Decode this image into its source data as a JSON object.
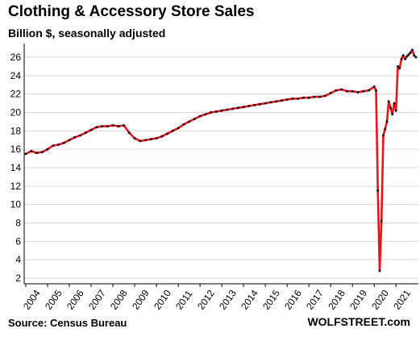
{
  "header": {
    "title": "Clothing & Accessory Store Sales",
    "subtitle": "Billion $, seasonally adjusted"
  },
  "footer": {
    "source": "Source: Census Bureau",
    "brand": "WOLFSTREET.com"
  },
  "colors": {
    "line": "#e8141b",
    "marker": "#000000",
    "grid": "#d9d9d9",
    "axis": "#000000"
  },
  "chart_data": {
    "type": "line",
    "title": "Clothing & Accessory Store Sales",
    "subtitle": "Billion $, seasonally adjusted",
    "xlabel": "",
    "ylabel": "",
    "ylim": [
      2,
      26
    ],
    "yticks": [
      2,
      4,
      6,
      8,
      10,
      12,
      14,
      16,
      18,
      20,
      22,
      24,
      26
    ],
    "xticks": [
      "2004",
      "2005",
      "2006",
      "2007",
      "2008",
      "2009",
      "2010",
      "2011",
      "2012",
      "2013",
      "2014",
      "2015",
      "2016",
      "2017",
      "2018",
      "2019",
      "2020",
      "2021"
    ],
    "xlim": [
      "2004-01",
      "2021-12"
    ],
    "grid": "horizontal",
    "legend": "none",
    "series": [
      {
        "x": [
          "2004-01",
          "2004-04",
          "2004-07",
          "2004-10",
          "2005-01",
          "2005-04",
          "2005-07",
          "2005-10",
          "2006-01",
          "2006-04",
          "2006-07",
          "2006-10",
          "2007-01",
          "2007-04",
          "2007-07",
          "2007-10",
          "2008-01",
          "2008-04",
          "2008-07",
          "2008-10",
          "2009-01",
          "2009-04",
          "2009-07",
          "2009-10",
          "2010-01",
          "2010-04",
          "2010-07",
          "2010-10",
          "2011-01",
          "2011-04",
          "2011-07",
          "2011-10",
          "2012-01",
          "2012-04",
          "2012-07",
          "2012-10",
          "2013-01",
          "2013-04",
          "2013-07",
          "2013-10",
          "2014-01",
          "2014-04",
          "2014-07",
          "2014-10",
          "2015-01",
          "2015-04",
          "2015-07",
          "2015-10",
          "2016-01",
          "2016-04",
          "2016-07",
          "2016-10",
          "2017-01",
          "2017-04",
          "2017-07",
          "2017-10",
          "2018-01",
          "2018-04",
          "2018-07",
          "2018-10",
          "2019-01",
          "2019-04",
          "2019-07",
          "2019-10",
          "2020-01",
          "2020-02",
          "2020-03",
          "2020-04",
          "2020-05",
          "2020-06",
          "2020-07",
          "2020-08",
          "2020-09",
          "2020-10",
          "2020-11",
          "2020-12",
          "2021-01",
          "2021-02",
          "2021-03",
          "2021-04",
          "2021-05",
          "2021-06",
          "2021-07",
          "2021-08",
          "2021-09",
          "2021-10",
          "2021-11",
          "2021-12"
        ],
        "values": [
          15.5,
          15.8,
          15.6,
          15.7,
          16.0,
          16.4,
          16.5,
          16.7,
          17.0,
          17.3,
          17.5,
          17.8,
          18.1,
          18.4,
          18.5,
          18.5,
          18.6,
          18.5,
          18.6,
          17.8,
          17.2,
          16.9,
          17.0,
          17.1,
          17.2,
          17.4,
          17.7,
          18.0,
          18.3,
          18.7,
          19.0,
          19.3,
          19.6,
          19.8,
          20.0,
          20.1,
          20.2,
          20.3,
          20.4,
          20.5,
          20.6,
          20.7,
          20.8,
          20.9,
          21.0,
          21.1,
          21.2,
          21.3,
          21.4,
          21.5,
          21.5,
          21.6,
          21.6,
          21.7,
          21.7,
          21.8,
          22.1,
          22.4,
          22.5,
          22.3,
          22.3,
          22.2,
          22.3,
          22.4,
          22.8,
          22.4,
          11.5,
          2.8,
          8.2,
          17.5,
          18.2,
          19.0,
          21.2,
          20.5,
          19.8,
          21.0,
          20.2,
          25.0,
          24.8,
          25.8,
          26.2,
          25.8,
          26.1,
          26.3,
          26.5,
          26.8,
          26.2,
          26.0
        ]
      }
    ]
  }
}
